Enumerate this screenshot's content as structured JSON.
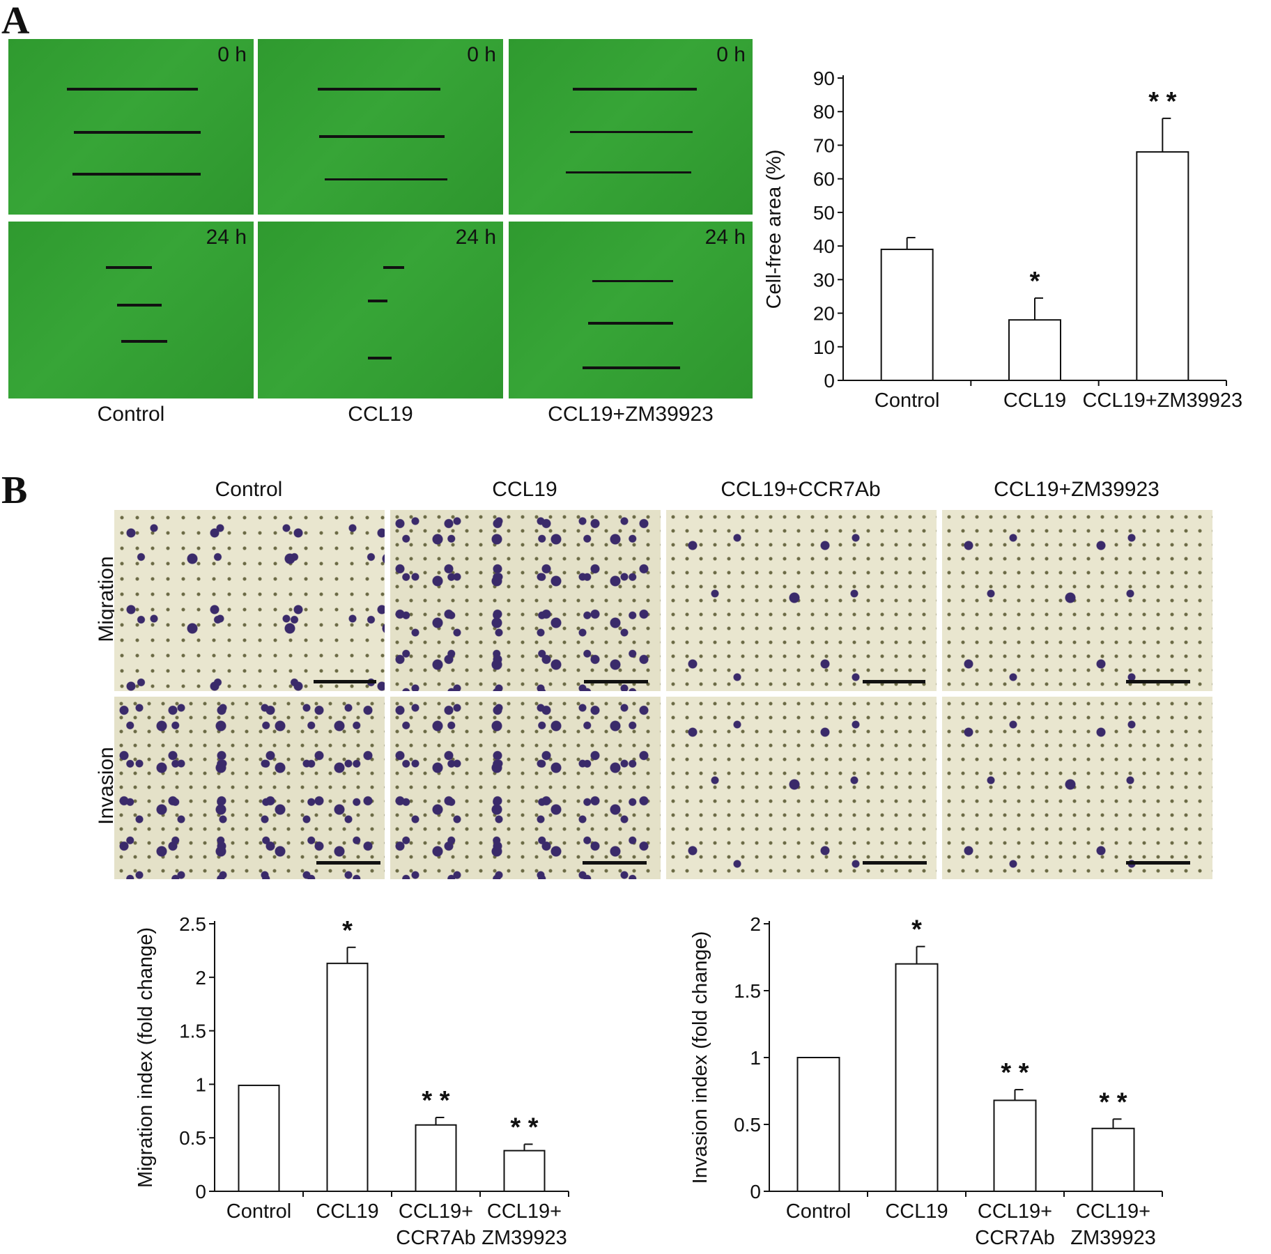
{
  "panels": {
    "a": "A",
    "b": "B"
  },
  "panel_a": {
    "time_labels": [
      "0 h",
      "24 h"
    ],
    "conditions": [
      "Control",
      "CCL19",
      "CCL19+ZM39923"
    ]
  },
  "panel_b": {
    "columns": [
      "Control",
      "CCL19",
      "CCL19+CCR7Ab",
      "CCL19+ZM39923"
    ],
    "rows": [
      "Migration",
      "Invasion"
    ]
  },
  "chart_data": [
    {
      "type": "bar",
      "categories": [
        [
          "Control"
        ],
        [
          "CCL19"
        ],
        [
          "CCL19+ZM39923"
        ]
      ],
      "values": [
        39,
        18,
        68
      ],
      "errors": [
        3.5,
        6.5,
        10
      ],
      "significance": [
        "",
        "*",
        "* *"
      ],
      "ylabel": "Cell-free area (%)",
      "ylim": [
        0,
        90
      ],
      "yticks": [
        0,
        10,
        20,
        30,
        40,
        50,
        60,
        70,
        80,
        90
      ]
    },
    {
      "type": "bar",
      "categories": [
        [
          "Control"
        ],
        [
          "CCL19"
        ],
        [
          "CCL19+",
          "CCR7Ab"
        ],
        [
          "CCL19+",
          "ZM39923"
        ]
      ],
      "values": [
        0.99,
        2.13,
        0.62,
        0.38
      ],
      "errors": [
        0,
        0.15,
        0.07,
        0.06
      ],
      "significance": [
        "",
        "*",
        "* *",
        "* *"
      ],
      "ylabel": "Migration index (fold change)",
      "ylim": [
        0,
        2.5
      ],
      "yticks": [
        0,
        0.5,
        1,
        1.5,
        2,
        2.5
      ]
    },
    {
      "type": "bar",
      "categories": [
        [
          "Control"
        ],
        [
          "CCL19"
        ],
        [
          "CCL19+",
          "CCR7Ab"
        ],
        [
          "CCL19+",
          "ZM39923"
        ]
      ],
      "values": [
        1.0,
        1.7,
        0.68,
        0.47
      ],
      "errors": [
        0,
        0.13,
        0.08,
        0.07
      ],
      "significance": [
        "",
        "*",
        "* *",
        "* *"
      ],
      "ylabel": "Invasion index (fold change)",
      "ylim": [
        0,
        2
      ],
      "yticks": [
        0,
        0.5,
        1,
        1.5,
        2
      ]
    }
  ]
}
